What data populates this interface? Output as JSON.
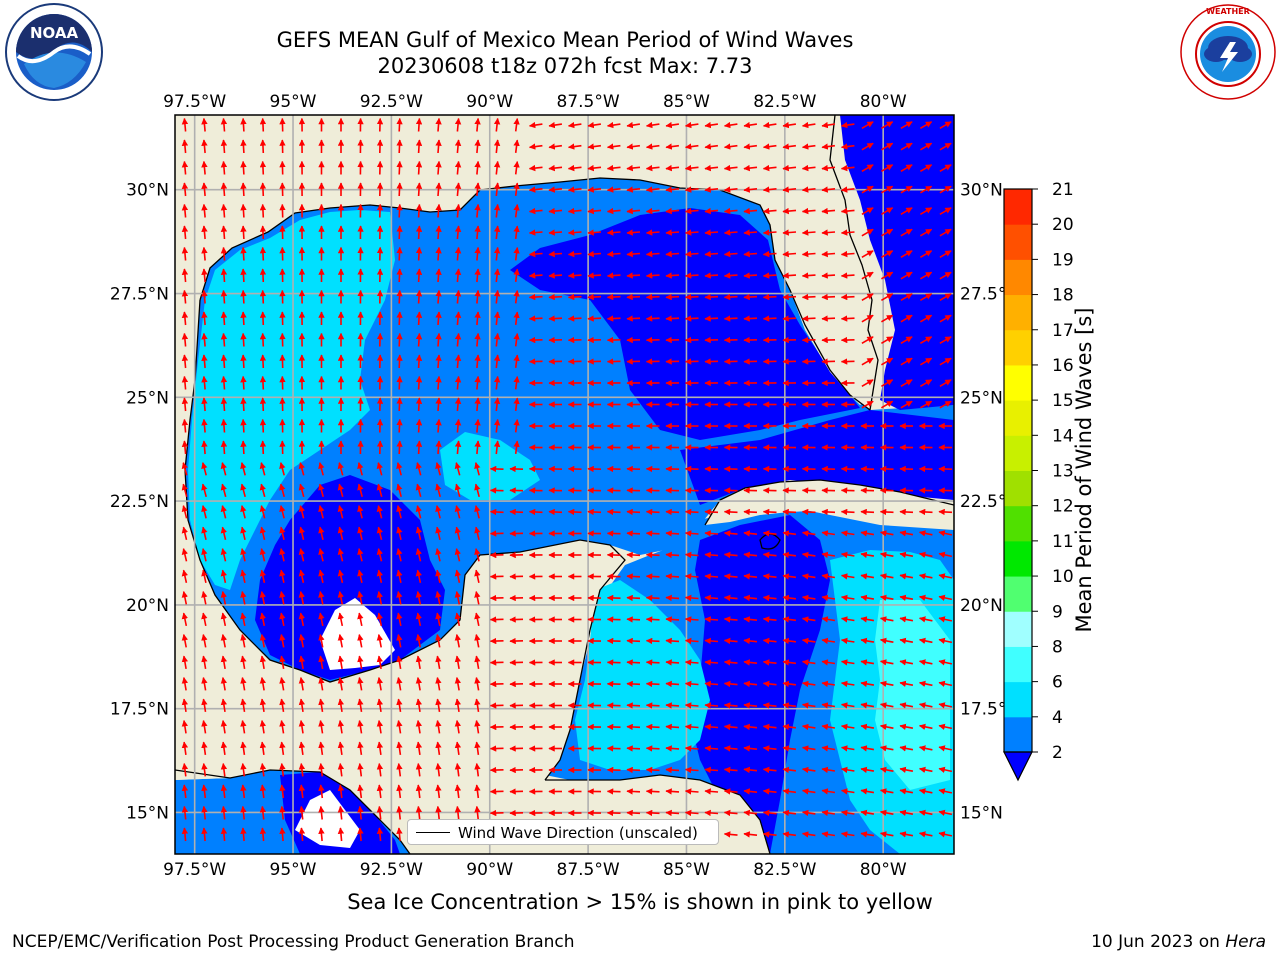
{
  "title": {
    "line1": "GEFS MEAN Gulf of Mexico Mean Period of Wind Waves",
    "line2": "20230608 t18z 072h fcst   Max: 7.73"
  },
  "logos": {
    "noaa": {
      "text": "NOAA",
      "ring_text": "NATIONAL OCEANIC AND ATMOSPHERIC ADMINISTRATION · U.S. DEPARTMENT OF COMMERCE"
    },
    "nws": {
      "ring_text": "NATIONAL WEATHER SERVICE"
    }
  },
  "map": {
    "lon_range": [
      -98.0,
      -78.2
    ],
    "lat_range": [
      14.0,
      31.8
    ],
    "lon_ticks": [
      "97.5°W",
      "95°W",
      "92.5°W",
      "90°W",
      "87.5°W",
      "85°W",
      "82.5°W",
      "80°W"
    ],
    "lon_values": [
      -97.5,
      -95,
      -92.5,
      -90,
      -87.5,
      -85,
      -82.5,
      -80
    ],
    "lat_ticks": [
      "30°N",
      "27.5°N",
      "25°N",
      "22.5°N",
      "20°N",
      "17.5°N",
      "15°N"
    ],
    "lat_values": [
      30,
      27.5,
      25,
      22.5,
      20,
      17.5,
      15
    ],
    "grid": true,
    "land_color": "#efedd9",
    "coast_color": "#000000",
    "arrow_color": "#ff0000"
  },
  "colorbar": {
    "label": "Mean Period of Wind Waves [s]",
    "levels": [
      "2",
      "4",
      "6",
      "8",
      "9",
      "10",
      "11",
      "12",
      "13",
      "14",
      "15",
      "16",
      "17",
      "18",
      "19",
      "20",
      "21"
    ],
    "colors": [
      "#0080ff",
      "#00e0ff",
      "#40ffff",
      "#a0ffff",
      "#50ff70",
      "#00e800",
      "#50e000",
      "#a0e000",
      "#c8f000",
      "#e8f000",
      "#ffff00",
      "#ffd000",
      "#ffb000",
      "#ff8800",
      "#ff5000",
      "#ff2800"
    ],
    "under_color": "#0000ff"
  },
  "legend": {
    "label": "Wind Wave Direction (unscaled)"
  },
  "ice_note": "Sea Ice Concentration > 15% is shown in pink to yellow",
  "footer": {
    "left": "NCEP/EMC/Verification Post Processing Product Generation Branch",
    "right_date": "10 Jun 2023 on",
    "right_host": "Hera"
  }
}
